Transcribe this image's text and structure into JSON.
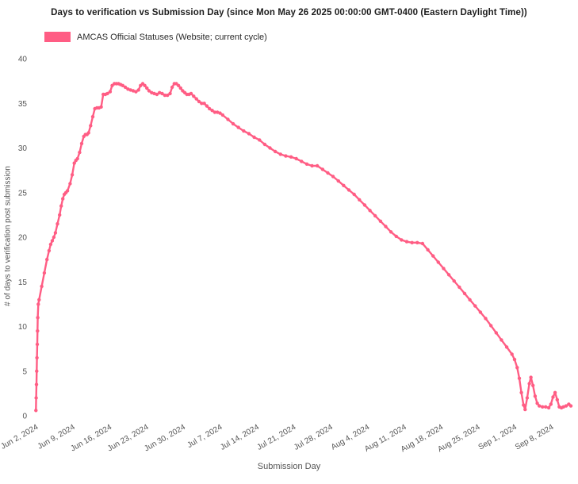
{
  "page": {
    "background": "#ffffff"
  },
  "chart_data": {
    "type": "line",
    "title": "Days to verification vs Submission Day (since Mon May 26 2025 00:00:00 GMT-0400 (Eastern Daylight Time))",
    "xlabel": "Submission Day",
    "ylabel": "# of days to verification post submission",
    "legend": {
      "position": "top-left",
      "entries": [
        {
          "label": "AMCAS Official Statuses (Website; current cycle)",
          "color": "#ff5d84"
        }
      ]
    },
    "grid": false,
    "ylim": [
      0,
      40
    ],
    "y_ticks": [
      0,
      5,
      10,
      15,
      20,
      25,
      30,
      35,
      40
    ],
    "x_range_days": [
      0,
      102.5
    ],
    "x_ticks": [
      {
        "day": 1,
        "label": "Jun 2, 2024"
      },
      {
        "day": 8,
        "label": "Jun 9, 2024"
      },
      {
        "day": 15,
        "label": "Jun 16, 2024"
      },
      {
        "day": 22,
        "label": "Jun 23, 2024"
      },
      {
        "day": 29,
        "label": "Jun 30, 2024"
      },
      {
        "day": 36,
        "label": "Jul 7, 2024"
      },
      {
        "day": 43,
        "label": "Jul 14, 2024"
      },
      {
        "day": 50,
        "label": "Jul 21, 2024"
      },
      {
        "day": 57,
        "label": "Jul 28, 2024"
      },
      {
        "day": 64,
        "label": "Aug 4, 2024"
      },
      {
        "day": 71,
        "label": "Aug 11, 2024"
      },
      {
        "day": 78,
        "label": "Aug 18, 2024"
      },
      {
        "day": 85,
        "label": "Aug 25, 2024"
      },
      {
        "day": 92,
        "label": "Sep 1, 2024"
      },
      {
        "day": 99,
        "label": "Sep 8, 2024"
      }
    ],
    "series": [
      {
        "name": "AMCAS Official Statuses (Website; current cycle)",
        "color": "#ff5d84",
        "mode": "lines+markers",
        "points": [
          [
            0.5,
            0.6
          ],
          [
            0.55,
            2
          ],
          [
            0.6,
            3.5
          ],
          [
            0.65,
            5
          ],
          [
            0.7,
            6.5
          ],
          [
            0.75,
            8
          ],
          [
            0.8,
            9.5
          ],
          [
            0.85,
            11
          ],
          [
            0.95,
            12.5
          ],
          [
            1.1,
            13
          ],
          [
            1.6,
            14.5
          ],
          [
            2.1,
            16
          ],
          [
            2.6,
            17.5
          ],
          [
            3.0,
            18.5
          ],
          [
            3.3,
            19.2
          ],
          [
            3.6,
            19.6
          ],
          [
            3.9,
            20
          ],
          [
            4.2,
            20.5
          ],
          [
            4.6,
            21.5
          ],
          [
            5.0,
            22.5
          ],
          [
            5.3,
            23.5
          ],
          [
            5.6,
            24.3
          ],
          [
            5.9,
            24.8
          ],
          [
            6.2,
            25
          ],
          [
            6.5,
            25.2
          ],
          [
            7.0,
            26
          ],
          [
            7.4,
            27
          ],
          [
            7.8,
            28.3
          ],
          [
            8.1,
            28.6
          ],
          [
            8.4,
            28.8
          ],
          [
            8.8,
            29.5
          ],
          [
            9.2,
            30.5
          ],
          [
            9.6,
            31.3
          ],
          [
            9.9,
            31.5
          ],
          [
            10.2,
            31.5
          ],
          [
            10.5,
            31.7
          ],
          [
            10.9,
            32.5
          ],
          [
            11.3,
            33.5
          ],
          [
            11.7,
            34.4
          ],
          [
            12.1,
            34.5
          ],
          [
            12.5,
            34.5
          ],
          [
            12.9,
            34.6
          ],
          [
            13.3,
            36
          ],
          [
            13.7,
            36
          ],
          [
            14.1,
            36.1
          ],
          [
            14.6,
            36.3
          ],
          [
            15.0,
            37
          ],
          [
            15.4,
            37.2
          ],
          [
            15.8,
            37.2
          ],
          [
            16.2,
            37.2
          ],
          [
            16.6,
            37.1
          ],
          [
            17.0,
            37
          ],
          [
            17.5,
            36.8
          ],
          [
            18.0,
            36.6
          ],
          [
            18.5,
            36.5
          ],
          [
            19.0,
            36.4
          ],
          [
            19.5,
            36.3
          ],
          [
            20.0,
            36.5
          ],
          [
            20.4,
            37
          ],
          [
            20.8,
            37.2
          ],
          [
            21.2,
            37
          ],
          [
            21.6,
            36.7
          ],
          [
            22.0,
            36.4
          ],
          [
            22.5,
            36.2
          ],
          [
            23.0,
            36.1
          ],
          [
            23.5,
            36
          ],
          [
            24.0,
            36.2
          ],
          [
            24.5,
            36.1
          ],
          [
            25.0,
            35.9
          ],
          [
            25.5,
            35.9
          ],
          [
            26.0,
            36.1
          ],
          [
            26.4,
            36.8
          ],
          [
            26.8,
            37.2
          ],
          [
            27.2,
            37.2
          ],
          [
            27.6,
            37
          ],
          [
            28.0,
            36.7
          ],
          [
            28.4,
            36.4
          ],
          [
            28.8,
            36.2
          ],
          [
            29.2,
            36
          ],
          [
            29.6,
            36
          ],
          [
            30.0,
            36.1
          ],
          [
            30.5,
            35.8
          ],
          [
            31.0,
            35.5
          ],
          [
            31.5,
            35.2
          ],
          [
            32.0,
            35
          ],
          [
            32.5,
            35
          ],
          [
            33.0,
            34.7
          ],
          [
            33.5,
            34.4
          ],
          [
            34.0,
            34.2
          ],
          [
            34.5,
            34
          ],
          [
            35.0,
            34
          ],
          [
            35.5,
            33.9
          ],
          [
            36.0,
            33.7
          ],
          [
            37,
            33.2
          ],
          [
            38,
            32.7
          ],
          [
            39,
            32.3
          ],
          [
            40,
            31.9
          ],
          [
            41,
            31.6
          ],
          [
            42,
            31.2
          ],
          [
            43,
            30.9
          ],
          [
            44,
            30.4
          ],
          [
            45,
            30
          ],
          [
            46,
            29.6
          ],
          [
            47,
            29.3
          ],
          [
            48,
            29.1
          ],
          [
            49,
            29
          ],
          [
            50,
            28.8
          ],
          [
            51,
            28.5
          ],
          [
            52,
            28.2
          ],
          [
            53,
            28
          ],
          [
            54,
            28
          ],
          [
            55,
            27.6
          ],
          [
            56,
            27.2
          ],
          [
            57,
            26.8
          ],
          [
            58,
            26.3
          ],
          [
            59,
            25.8
          ],
          [
            60,
            25.3
          ],
          [
            61,
            24.8
          ],
          [
            62,
            24.2
          ],
          [
            63,
            23.6
          ],
          [
            64,
            23
          ],
          [
            65,
            22.4
          ],
          [
            66,
            21.8
          ],
          [
            67,
            21.2
          ],
          [
            68,
            20.6
          ],
          [
            69,
            20.1
          ],
          [
            70,
            19.7
          ],
          [
            71,
            19.5
          ],
          [
            72,
            19.4
          ],
          [
            73,
            19.4
          ],
          [
            74,
            19.3
          ],
          [
            75,
            18.6
          ],
          [
            76,
            17.9
          ],
          [
            77,
            17.2
          ],
          [
            78,
            16.5
          ],
          [
            79,
            15.8
          ],
          [
            80,
            15.1
          ],
          [
            81,
            14.4
          ],
          [
            82,
            13.7
          ],
          [
            83,
            13
          ],
          [
            84,
            12.3
          ],
          [
            85,
            11.6
          ],
          [
            86,
            10.9
          ],
          [
            87,
            10.1
          ],
          [
            88,
            9.3
          ],
          [
            89,
            8.5
          ],
          [
            90,
            7.7
          ],
          [
            91,
            6.9
          ],
          [
            91.5,
            6.3
          ],
          [
            92,
            5.4
          ],
          [
            92.4,
            4.2
          ],
          [
            92.8,
            2.6
          ],
          [
            93.2,
            1.2
          ],
          [
            93.5,
            0.7
          ],
          [
            93.9,
            2
          ],
          [
            94.3,
            3.6
          ],
          [
            94.6,
            4.3
          ],
          [
            95.0,
            3.4
          ],
          [
            95.4,
            2.2
          ],
          [
            95.8,
            1.4
          ],
          [
            96.2,
            1.1
          ],
          [
            96.8,
            1
          ],
          [
            97.4,
            1
          ],
          [
            98.0,
            0.9
          ],
          [
            98.4,
            1.3
          ],
          [
            98.8,
            2.1
          ],
          [
            99.2,
            2.6
          ],
          [
            99.6,
            1.8
          ],
          [
            100.0,
            1
          ],
          [
            100.4,
            0.9
          ],
          [
            100.8,
            1
          ],
          [
            101.3,
            1.1
          ],
          [
            101.8,
            1.3
          ],
          [
            102.2,
            1.1
          ]
        ]
      }
    ]
  }
}
